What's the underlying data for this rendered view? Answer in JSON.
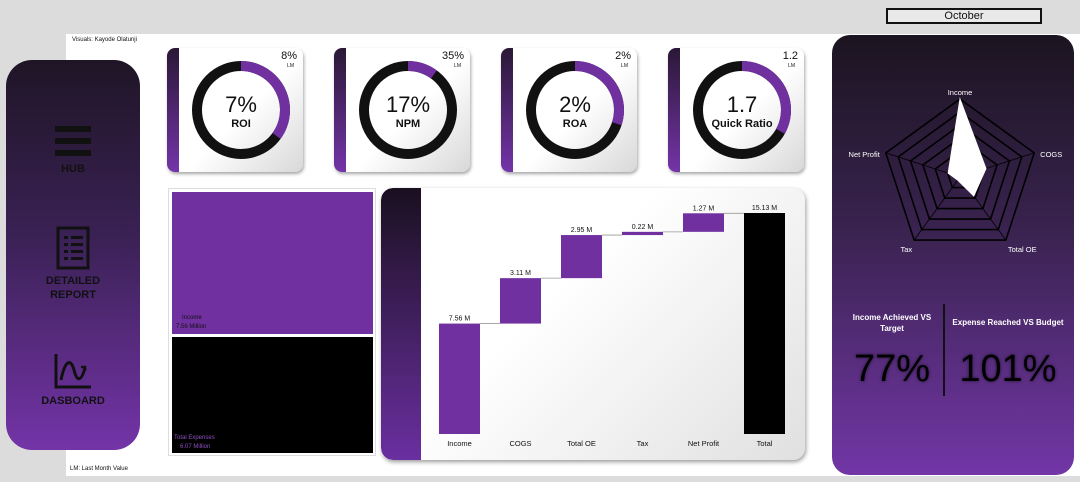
{
  "month_filter": "October",
  "credit": "Visuals: Kayode Olatunji",
  "footnote": "LM: Last Month Value",
  "nav": {
    "items": [
      {
        "label": "HUB",
        "icon": "hamburger-icon"
      },
      {
        "label": "DETAILED\nREPORT",
        "icon": "report-icon"
      },
      {
        "label": "DASBOARD",
        "icon": "chart-line-icon"
      }
    ]
  },
  "kpis": [
    {
      "value": "7%",
      "label": "ROI",
      "lm_value": "8%",
      "lm_tag": "LM",
      "fill": 0.35
    },
    {
      "value": "17%",
      "label": "NPM",
      "lm_value": "35%",
      "lm_tag": "LM",
      "fill": 0.1
    },
    {
      "value": "2%",
      "label": "ROA",
      "lm_value": "2%",
      "lm_tag": "LM",
      "fill": 0.3
    },
    {
      "value": "1.7",
      "label": "Quick Ratio",
      "lm_value": "1.2",
      "lm_tag": "LM",
      "fill": 0.33
    }
  ],
  "treemap": {
    "income_label": "Income",
    "income_value": "7.56 Million",
    "expenses_label": "Total Expenses",
    "expenses_value": "6.07 Million"
  },
  "chart_data": {
    "type": "bar",
    "subtype": "waterfall",
    "categories": [
      "Income",
      "COGS",
      "Total OE",
      "Tax",
      "Net Profit",
      "Total"
    ],
    "values": [
      7.56,
      3.11,
      2.95,
      0.22,
      1.27,
      15.13
    ],
    "labels": [
      "7.56 M",
      "3.11 M",
      "2.95 M",
      "0.22 M",
      "1.27 M",
      "15.13 M"
    ],
    "colors": {
      "step": "#7030a0",
      "total": "#000000"
    },
    "ylim": [
      0,
      15.13
    ]
  },
  "radar": {
    "axes": [
      "Income",
      "COGS",
      "Total OE",
      "Tax",
      "Net Profit"
    ],
    "values": [
      1.0,
      0.35,
      0.3,
      0.05,
      0.16
    ],
    "rings": 6
  },
  "summary": {
    "income_title": "Income Achieved VS Target",
    "income_value": "77%",
    "expense_title": "Expense Reached VS Budget",
    "expense_value": "101%"
  },
  "colors": {
    "accent": "#7030a0",
    "dark": "#1b1420"
  }
}
